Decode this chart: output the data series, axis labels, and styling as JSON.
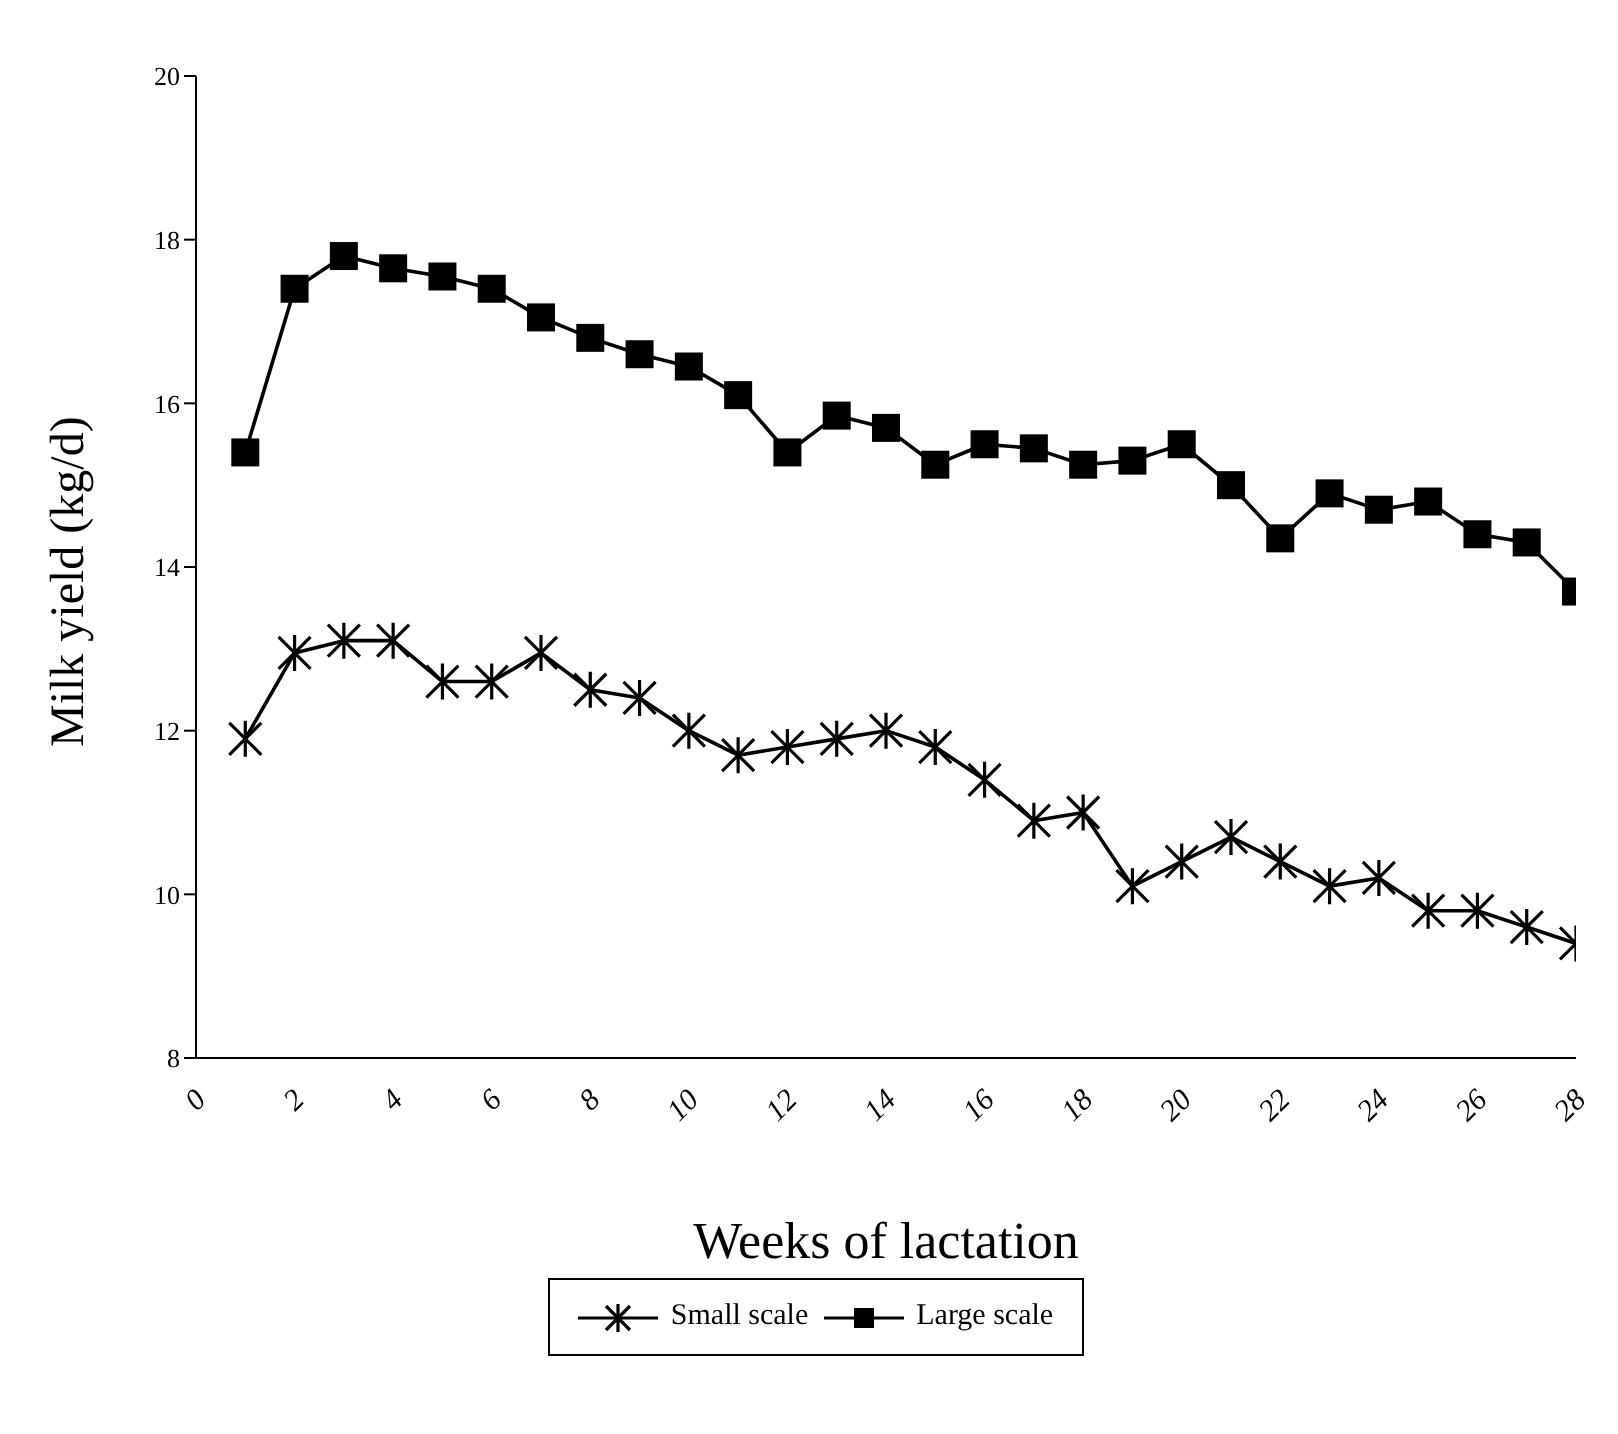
{
  "chart_data": {
    "type": "line",
    "xlabel": "Weeks of lactation",
    "ylabel": "Milk yield (kg/d)",
    "x": [
      1,
      2,
      3,
      4,
      5,
      6,
      7,
      8,
      9,
      10,
      11,
      12,
      13,
      14,
      15,
      16,
      17,
      18,
      19,
      20,
      21,
      22,
      23,
      24,
      25,
      26,
      27,
      28
    ],
    "xlim": [
      0,
      28
    ],
    "xticks": [
      0,
      2,
      4,
      6,
      8,
      10,
      12,
      14,
      16,
      18,
      20,
      22,
      24,
      26,
      28
    ],
    "ylim": [
      8,
      20
    ],
    "yticks": [
      8,
      10,
      12,
      14,
      16,
      18,
      20
    ],
    "series": [
      {
        "name": "Small scale",
        "color": "#000000",
        "marker": "cross",
        "values": [
          11.9,
          12.95,
          13.1,
          13.1,
          12.6,
          12.6,
          12.95,
          12.5,
          12.4,
          12.0,
          11.7,
          11.8,
          11.9,
          12.0,
          11.8,
          11.4,
          10.9,
          11.0,
          10.1,
          10.4,
          10.7,
          10.4,
          10.1,
          10.2,
          9.8,
          9.8,
          9.6,
          9.4
        ]
      },
      {
        "name": "Large scale",
        "color": "#000000",
        "marker": "square",
        "values": [
          15.4,
          17.4,
          17.8,
          17.65,
          17.55,
          17.4,
          17.05,
          16.8,
          16.6,
          16.45,
          16.1,
          15.4,
          15.85,
          15.7,
          15.25,
          15.5,
          15.45,
          15.25,
          15.3,
          15.5,
          15.0,
          14.35,
          14.9,
          14.7,
          14.8,
          14.4,
          14.3,
          13.7
        ]
      }
    ],
    "legend": "bottom",
    "grid": false,
    "line_style": "solid"
  }
}
